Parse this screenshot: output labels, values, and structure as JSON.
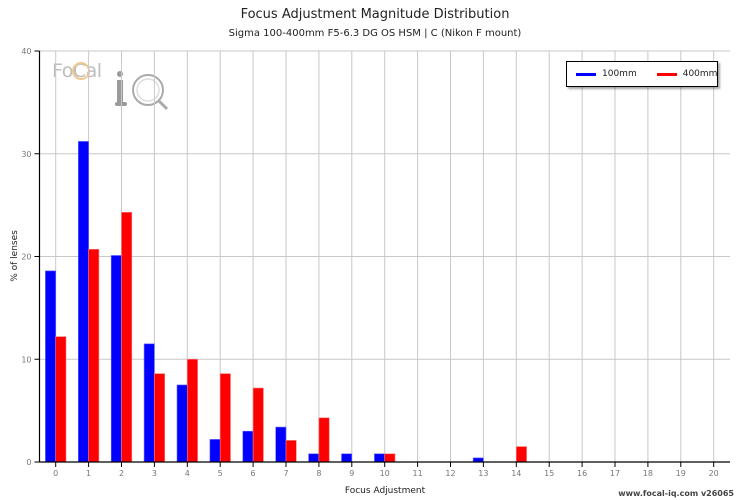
{
  "chart_data": {
    "type": "bar",
    "title": "Focus Adjustment Magnitude Distribution",
    "subtitle": "Sigma 100-400mm F5-6.3 DG OS HSM | C (Nikon F mount)",
    "xlabel": "Focus Adjustment",
    "ylabel": "% of lenses",
    "ylim": [
      0,
      40
    ],
    "yticks": [
      0,
      10,
      20,
      30,
      40
    ],
    "grid": true,
    "legend_position": "top-right",
    "categories": [
      "0",
      "1",
      "2",
      "3",
      "4",
      "5",
      "6",
      "7",
      "8",
      "9",
      "10",
      "11",
      "12",
      "13",
      "14",
      "15",
      "16",
      "17",
      "18",
      "19",
      "20"
    ],
    "series": [
      {
        "name": "100mm",
        "color": "#0000ff",
        "values": [
          18.6,
          31.2,
          20.1,
          11.5,
          7.5,
          2.2,
          3.0,
          3.4,
          0.8,
          0.8,
          0.8,
          0,
          0,
          0.4,
          0,
          0,
          0,
          0,
          0,
          0,
          0
        ]
      },
      {
        "name": "400mm",
        "color": "#ff0000",
        "values": [
          12.2,
          20.7,
          24.3,
          8.6,
          10.0,
          8.6,
          7.2,
          2.1,
          4.3,
          0,
          0.8,
          0,
          0,
          0,
          1.5,
          0,
          0,
          0,
          0,
          0,
          0
        ]
      }
    ]
  },
  "labels": {
    "title": "Focus Adjustment Magnitude Distribution",
    "subtitle": "Sigma 100-400mm F5-6.3 DG OS HSM | C (Nikon F mount)",
    "xlabel": "Focus Adjustment",
    "ylabel": "% of lenses",
    "legend_100": "100mm",
    "legend_400": "400mm",
    "watermark": "www.focal-iq.com  v26065",
    "logo_text": "FoCal"
  }
}
